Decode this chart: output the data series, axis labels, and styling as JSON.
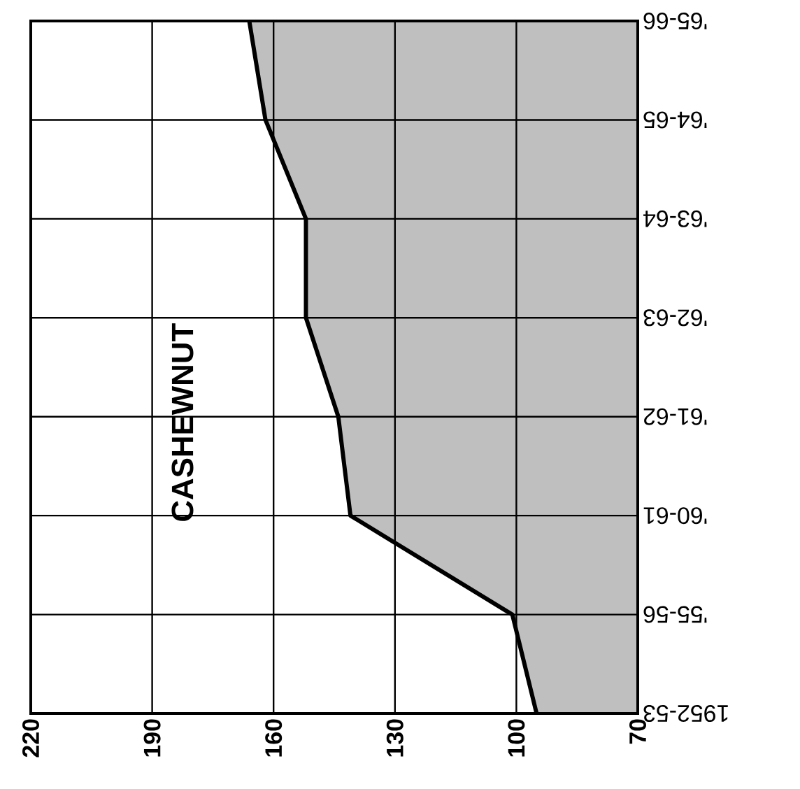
{
  "chart_data": {
    "type": "area",
    "orientation": "horizontal",
    "categories": [
      "'65-66",
      "'64-65",
      "'63-64",
      "'62-63",
      "'61-62",
      "'60-61",
      "'55-56",
      "1952-53"
    ],
    "series": [
      {
        "color": "#000000",
        "values": [
          166,
          162,
          152,
          152,
          144,
          141,
          101,
          95
        ]
      }
    ],
    "xlim": [
      220,
      70
    ],
    "xticks": [
      220,
      190,
      160,
      130,
      100,
      70
    ],
    "grid": true,
    "annotations": [
      "CASHEWNUT"
    ]
  }
}
